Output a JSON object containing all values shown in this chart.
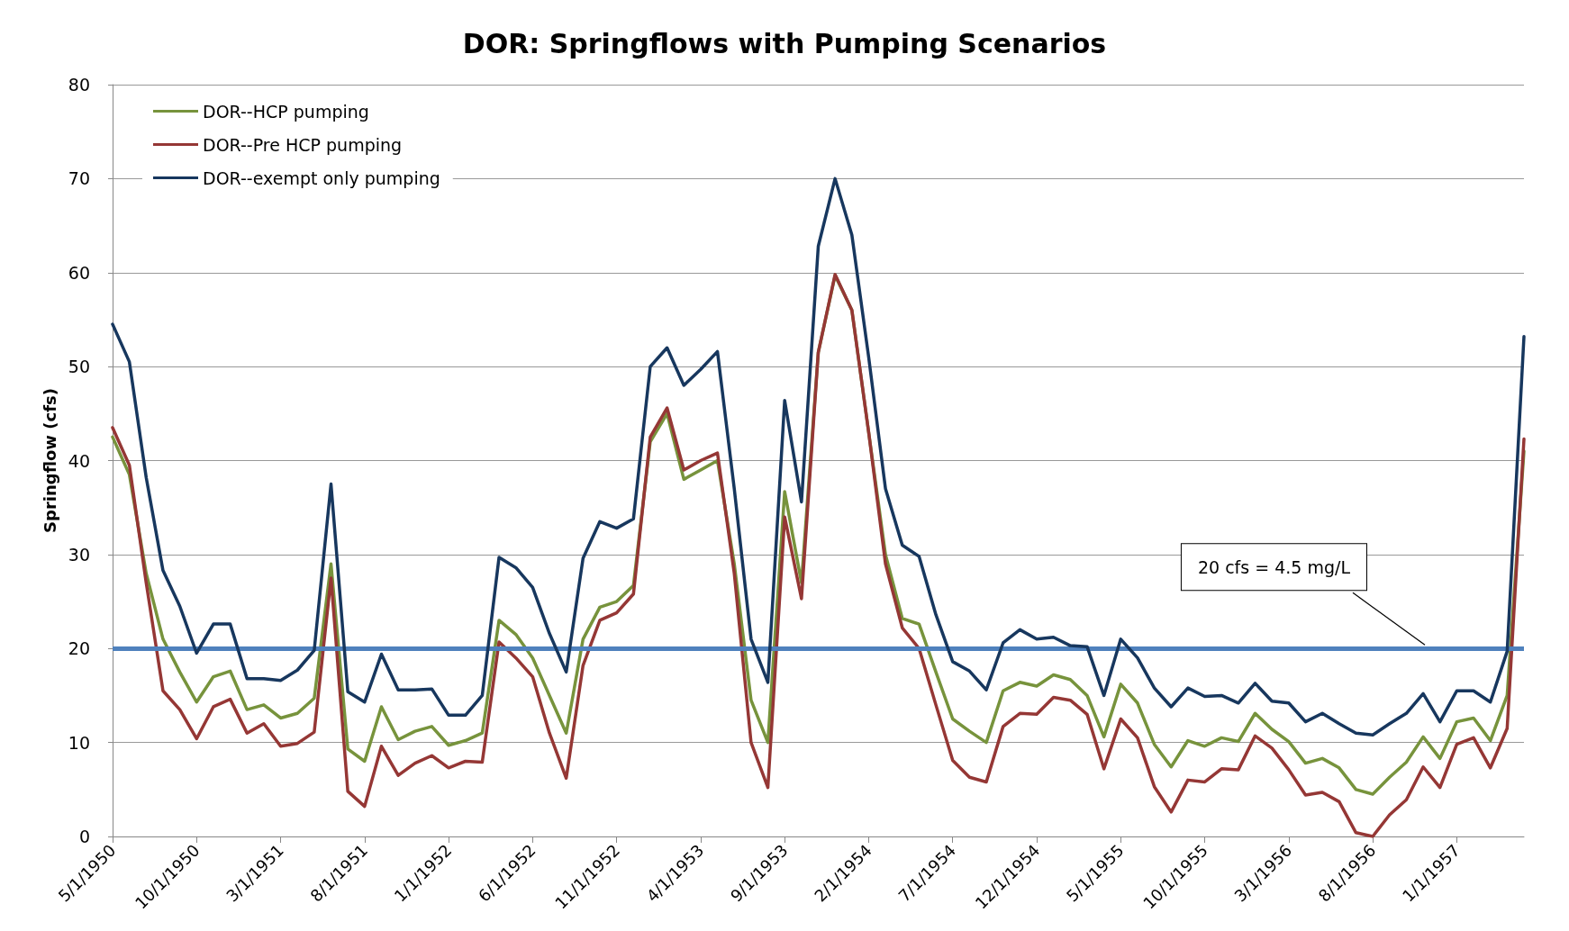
{
  "chart_data": {
    "type": "line",
    "title": "DOR: Springflows with Pumping Scenarios",
    "ylabel": "Springflow (cfs)",
    "categories": [
      "5/1/1950",
      null,
      null,
      null,
      null,
      "10/1/1950",
      null,
      null,
      null,
      null,
      "3/1/1951",
      null,
      null,
      null,
      null,
      "8/1/1951",
      null,
      null,
      null,
      null,
      "1/1/1952",
      null,
      null,
      null,
      null,
      "6/1/1952",
      null,
      null,
      null,
      null,
      "11/1/1952",
      null,
      null,
      null,
      null,
      "4/1/1953",
      null,
      null,
      null,
      null,
      "9/1/1953",
      null,
      null,
      null,
      null,
      "2/1/1954",
      null,
      null,
      null,
      null,
      "7/1/1954",
      null,
      null,
      null,
      null,
      "12/1/1954",
      null,
      null,
      null,
      null,
      "5/1/1955",
      null,
      null,
      null,
      null,
      "10/1/1955",
      null,
      null,
      null,
      null,
      "3/1/1956",
      null,
      null,
      null,
      null,
      "8/1/1956",
      null,
      null,
      null,
      null,
      "1/1/1957",
      null,
      null,
      null,
      null
    ],
    "series": [
      {
        "name": "DOR--HCP pumping",
        "color": "#77933c",
        "values": [
          42.5,
          38.5,
          28,
          21,
          17.5,
          14.3,
          17,
          17.6,
          13.5,
          14,
          12.6,
          13.1,
          14.7,
          29,
          9.3,
          8,
          13.8,
          10.3,
          11.2,
          11.7,
          9.7,
          10.2,
          11,
          23,
          21.5,
          19,
          15,
          11,
          21,
          24.4,
          25,
          26.7,
          42,
          45,
          38,
          39,
          40,
          29,
          14.5,
          10,
          36.7,
          27,
          51.5,
          59.7,
          56,
          43,
          30,
          23.2,
          22.6,
          17.5,
          12.5,
          11.2,
          10,
          15.5,
          16.4,
          16,
          17.2,
          16.7,
          15,
          10.6,
          16.2,
          14.2,
          9.8,
          7.4,
          10.2,
          9.6,
          10.5,
          10.1,
          13.1,
          11.4,
          10.1,
          7.8,
          8.3,
          7.3,
          5,
          4.5,
          6.3,
          7.9,
          10.6,
          8.3,
          12.2,
          12.6,
          10.2,
          15,
          41
        ]
      },
      {
        "name": "DOR--Pre HCP pumping",
        "color": "#953735",
        "values": [
          43.5,
          39.5,
          27,
          15.5,
          13.5,
          10.4,
          13.8,
          14.6,
          11,
          12,
          9.6,
          9.9,
          11.1,
          27.5,
          4.8,
          3.2,
          9.6,
          6.5,
          7.8,
          8.6,
          7.3,
          8,
          7.9,
          20.7,
          19,
          17,
          11,
          6.2,
          18.2,
          23,
          23.8,
          25.8,
          42.5,
          45.6,
          39,
          40,
          40.8,
          28,
          10,
          5.2,
          34,
          25.3,
          51.5,
          59.8,
          56,
          43,
          29,
          22.2,
          20,
          14,
          8.1,
          6.3,
          5.8,
          11.7,
          13.1,
          13,
          14.8,
          14.5,
          13,
          7.2,
          12.5,
          10.5,
          5.3,
          2.6,
          6,
          5.8,
          7.2,
          7.1,
          10.7,
          9.4,
          7.1,
          4.4,
          4.7,
          3.7,
          0.4,
          0,
          2.3,
          3.9,
          7.4,
          5.2,
          9.8,
          10.5,
          7.3,
          11.5,
          42.3
        ]
      },
      {
        "name": "DOR--exempt only pumping",
        "color": "#17375e",
        "values": [
          54.5,
          50.5,
          38.2,
          28.3,
          24.5,
          19.5,
          22.6,
          22.6,
          16.8,
          16.8,
          16.6,
          17.7,
          19.8,
          37.5,
          15.4,
          14.3,
          19.4,
          15.6,
          15.6,
          15.7,
          12.9,
          12.9,
          15,
          29.7,
          28.6,
          26.5,
          21.6,
          17.5,
          29.6,
          33.5,
          32.8,
          33.8,
          50,
          52,
          48,
          49.7,
          51.6,
          37,
          21,
          16.4,
          46.4,
          35.6,
          62.8,
          70,
          64,
          51,
          37,
          31,
          29.8,
          23.6,
          18.6,
          17.6,
          15.6,
          20.6,
          22,
          21,
          21.2,
          20.3,
          20.2,
          15,
          21,
          19,
          15.8,
          13.8,
          15.8,
          14.9,
          15,
          14.2,
          16.3,
          14.4,
          14.2,
          12.2,
          13.1,
          12,
          11,
          10.8,
          12,
          13.1,
          15.2,
          12.2,
          15.5,
          15.5,
          14.3,
          19.7,
          53.2
        ]
      }
    ],
    "ylim": [
      0,
      80
    ],
    "yticks": [
      0,
      10,
      20,
      30,
      40,
      50,
      60,
      70,
      80
    ],
    "grid": "y",
    "legend": "top left",
    "marker": "none",
    "line_style": "solid",
    "ref_lines": [
      {
        "axis": "y",
        "value": 20,
        "label": "20 cfs = 4.5 mg/L",
        "color": "#4f81bd"
      }
    ]
  }
}
